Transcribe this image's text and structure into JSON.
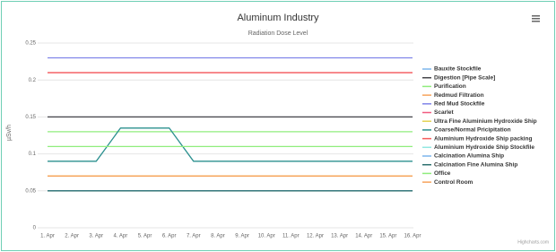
{
  "chart_data": {
    "type": "line",
    "title": "Aluminum Industry",
    "subtitle": "Radiation Dose Level",
    "y_label": "µSv/h",
    "credits": "Highcharts.com",
    "categories": [
      "1. Apr",
      "2. Apr",
      "3. Apr",
      "4. Apr",
      "5. Apr",
      "6. Apr",
      "7. Apr",
      "8. Apr",
      "9. Apr",
      "10. Apr",
      "11. Apr",
      "12. Apr",
      "13. Apr",
      "14. Apr",
      "15. Apr",
      "16. Apr"
    ],
    "ylim": [
      0,
      0.25
    ],
    "yticks": [
      0,
      0.05,
      0.1,
      0.15,
      0.2,
      0.25
    ],
    "grid": true,
    "series": [
      {
        "name": "Bauxite Stockfile",
        "color": "#7cb5ec",
        "values": [
          0.05,
          0.05,
          0.05,
          0.05,
          0.05,
          0.05,
          0.05,
          0.05,
          0.05,
          0.05,
          0.05,
          0.05,
          0.05,
          0.05,
          0.05,
          0.05
        ]
      },
      {
        "name": "Digestion [Pipe Scale]",
        "color": "#434348",
        "values": [
          0.15,
          0.15,
          0.15,
          0.15,
          0.15,
          0.15,
          0.15,
          0.15,
          0.15,
          0.15,
          0.15,
          0.15,
          0.15,
          0.15,
          0.15,
          0.15
        ]
      },
      {
        "name": "Purification",
        "color": "#90ed7d",
        "values": [
          0.13,
          0.13,
          0.13,
          0.13,
          0.13,
          0.13,
          0.13,
          0.13,
          0.13,
          0.13,
          0.13,
          0.13,
          0.13,
          0.13,
          0.13,
          0.13
        ]
      },
      {
        "name": "Redmud Filtration",
        "color": "#f7a35c",
        "values": [
          0.07,
          0.07,
          0.07,
          0.07,
          0.07,
          0.07,
          0.07,
          0.07,
          0.07,
          0.07,
          0.07,
          0.07,
          0.07,
          0.07,
          0.07,
          0.07
        ]
      },
      {
        "name": "Red Mud Stockfile",
        "color": "#8085e9",
        "values": [
          0.23,
          0.23,
          0.23,
          0.23,
          0.23,
          0.23,
          0.23,
          0.23,
          0.23,
          0.23,
          0.23,
          0.23,
          0.23,
          0.23,
          0.23,
          0.23
        ]
      },
      {
        "name": "Scarlet",
        "color": "#f15c80",
        "values": [
          0.21,
          0.21,
          0.21,
          0.21,
          0.21,
          0.21,
          0.21,
          0.21,
          0.21,
          0.21,
          0.21,
          0.21,
          0.21,
          0.21,
          0.21,
          0.21
        ]
      },
      {
        "name": "Ultra Fine Aluminium Hydroxide Ship",
        "color": "#e4d354",
        "values": [
          0.07,
          0.07,
          0.07,
          0.07,
          0.07,
          0.07,
          0.07,
          0.07,
          0.07,
          0.07,
          0.07,
          0.07,
          0.07,
          0.07,
          0.07,
          0.07
        ]
      },
      {
        "name": "Coarse/Normal Pricipitation",
        "color": "#2b908f",
        "values": [
          0.09,
          0.09,
          0.09,
          0.135,
          0.135,
          0.135,
          0.09,
          0.09,
          0.09,
          0.09,
          0.09,
          0.09,
          0.09,
          0.09,
          0.09,
          0.09
        ]
      },
      {
        "name": "Aluminium Hydroxide Ship packing",
        "color": "#f45b5b",
        "values": [
          0.21,
          0.21,
          0.21,
          0.21,
          0.21,
          0.21,
          0.21,
          0.21,
          0.21,
          0.21,
          0.21,
          0.21,
          0.21,
          0.21,
          0.21,
          0.21
        ]
      },
      {
        "name": "Aluminium Hydroxide Ship Stockfile",
        "color": "#91e8e1",
        "values": [
          0.05,
          0.05,
          0.05,
          0.05,
          0.05,
          0.05,
          0.05,
          0.05,
          0.05,
          0.05,
          0.05,
          0.05,
          0.05,
          0.05,
          0.05,
          0.05
        ]
      },
      {
        "name": "Calcination Alumina Ship",
        "color": "#7cb5ec",
        "values": [
          0.05,
          0.05,
          0.05,
          0.05,
          0.05,
          0.05,
          0.05,
          0.05,
          0.05,
          0.05,
          0.05,
          0.05,
          0.05,
          0.05,
          0.05,
          0.05
        ]
      },
      {
        "name": "Calcination Fine Alumina Ship",
        "color": "#2b6f6e",
        "values": [
          0.05,
          0.05,
          0.05,
          0.05,
          0.05,
          0.05,
          0.05,
          0.05,
          0.05,
          0.05,
          0.05,
          0.05,
          0.05,
          0.05,
          0.05,
          0.05
        ]
      },
      {
        "name": "Office",
        "color": "#90ed7d",
        "values": [
          0.11,
          0.11,
          0.11,
          0.11,
          0.11,
          0.11,
          0.11,
          0.11,
          0.11,
          0.11,
          0.11,
          0.11,
          0.11,
          0.11,
          0.11,
          0.11
        ]
      },
      {
        "name": "Control Room",
        "color": "#f7a35c",
        "values": [
          0.07,
          0.07,
          0.07,
          0.07,
          0.07,
          0.07,
          0.07,
          0.07,
          0.07,
          0.07,
          0.07,
          0.07,
          0.07,
          0.07,
          0.07,
          0.07
        ]
      }
    ]
  }
}
